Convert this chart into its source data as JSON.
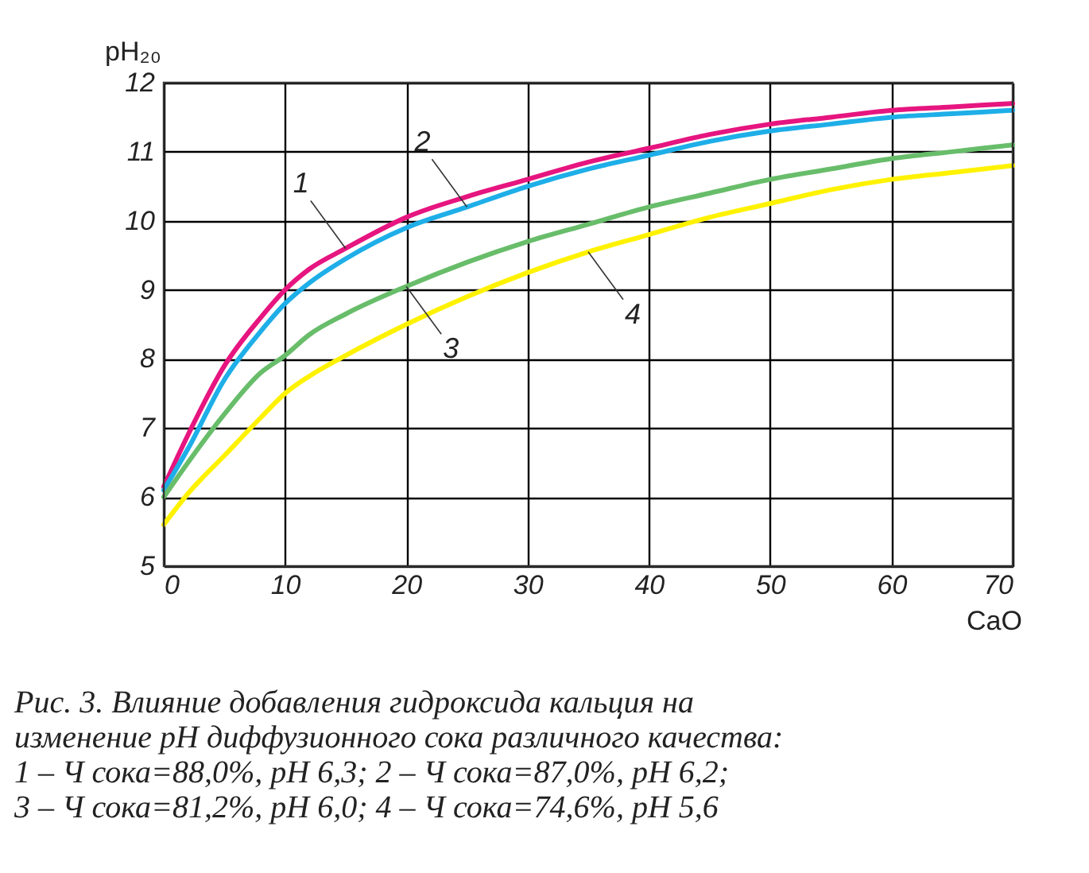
{
  "chart_data": {
    "type": "line",
    "xlabel": "CaO",
    "ylabel": "pH₂₀",
    "x": [
      0,
      2,
      5,
      8,
      10,
      12,
      15,
      20,
      25,
      30,
      35,
      40,
      45,
      50,
      55,
      60,
      65,
      70
    ],
    "series": [
      {
        "color": "#e6157f",
        "values": [
          6.15,
          6.9,
          7.9,
          8.6,
          9.0,
          9.3,
          9.6,
          10.05,
          10.35,
          10.6,
          10.85,
          11.05,
          11.25,
          11.4,
          11.5,
          11.6,
          11.65,
          11.7
        ]
      },
      {
        "color": "#1eaee8",
        "values": [
          6.1,
          6.7,
          7.7,
          8.4,
          8.8,
          9.1,
          9.45,
          9.9,
          10.2,
          10.5,
          10.75,
          10.95,
          11.15,
          11.3,
          11.4,
          11.5,
          11.55,
          11.6
        ]
      },
      {
        "color": "#68bd6a",
        "values": [
          6.0,
          6.5,
          7.2,
          7.8,
          8.05,
          8.35,
          8.65,
          9.05,
          9.4,
          9.7,
          9.95,
          10.2,
          10.4,
          10.6,
          10.75,
          10.9,
          11.0,
          11.1
        ]
      },
      {
        "color": "#fff200",
        "values": [
          5.6,
          6.05,
          6.6,
          7.15,
          7.5,
          7.75,
          8.05,
          8.5,
          8.9,
          9.25,
          9.55,
          9.8,
          10.05,
          10.25,
          10.45,
          10.6,
          10.7,
          10.8
        ]
      }
    ],
    "xlim": [
      0,
      70
    ],
    "xticks": [
      0,
      10,
      20,
      30,
      40,
      50,
      60,
      70
    ],
    "ylim": [
      5,
      12
    ],
    "yticks": [
      5,
      6,
      7,
      8,
      9,
      10,
      11,
      12
    ],
    "grid": true,
    "marker": "none",
    "line_style": "solid",
    "annotations": [
      {
        "text": "1",
        "x": 15,
        "y": 9.6
      },
      {
        "text": "2",
        "x": 25,
        "y": 10.2
      },
      {
        "text": "3",
        "x": 20,
        "y": 9.05
      },
      {
        "text": "4",
        "x": 35,
        "y": 9.55
      },
      "Рис. 3. Влияние добавления гидроксида кальция на",
      "изменение pH диффузионного сока различного качества:",
      "1 – Ч сока=88,0%, pH 6,3; 2 – Ч сока=87,0%, pH 6,2;",
      "3 – Ч сока=81,2%, pH 6,0; 4 – Ч сока=74,6%, pH 5,6"
    ]
  }
}
